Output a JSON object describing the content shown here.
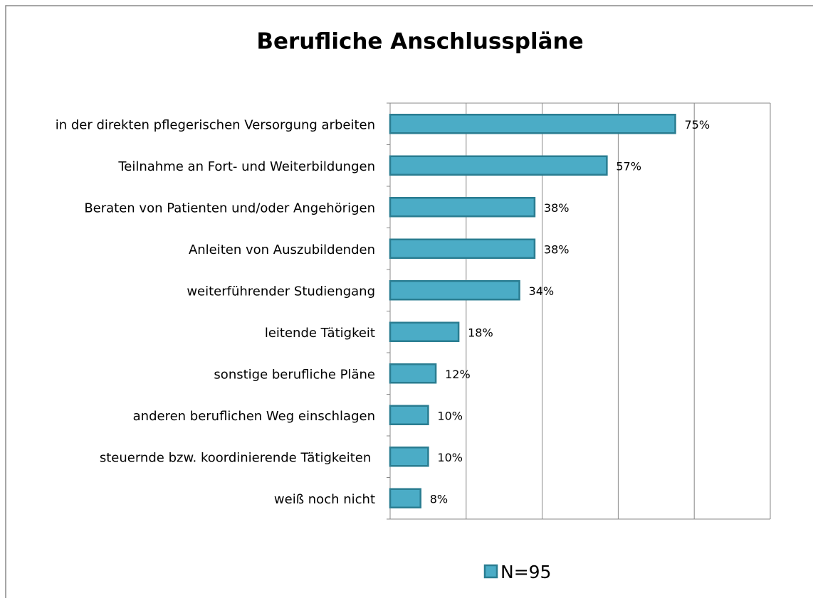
{
  "chart_data": {
    "type": "bar",
    "orientation": "horizontal",
    "title": "Berufliche Anschlusspläne",
    "categories": [
      "in der direkten pflegerischen Versorgung arbeiten",
      "Teilnahme an Fort- und Weiterbildungen",
      "Beraten von Patienten und/oder Angehörigen",
      "Anleiten von Auszubildenden",
      "weiterführender Studiengang",
      "leitende Tätigkeit",
      "sonstige berufliche Pläne",
      "anderen beruflichen Weg einschlagen",
      "steuernde bzw. koordinierende Tätigkeiten ",
      "weiß noch nicht"
    ],
    "series": [
      {
        "name": "N=95",
        "color": "#4bacc6",
        "values": [
          75,
          57,
          38,
          38,
          34,
          18,
          12,
          10,
          10,
          8
        ],
        "value_labels": [
          "75%",
          "57%",
          "38%",
          "38%",
          "34%",
          "18%",
          "12%",
          "10%",
          "10%",
          "8%"
        ]
      }
    ],
    "xlim": [
      0,
      100
    ],
    "xticks": [
      0,
      20,
      40,
      60,
      80,
      100
    ],
    "grid": true,
    "legend": "bottom"
  }
}
